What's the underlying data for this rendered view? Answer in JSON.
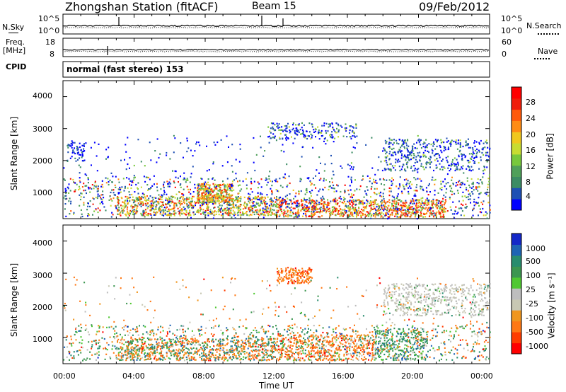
{
  "header": {
    "station": "Zhongshan Station (fitACF)",
    "beam": "Beam 15",
    "date": "09/Feb/2012"
  },
  "aux": {
    "nsky_label": "N.Sky",
    "nsky_ticks": [
      "10^5",
      "10^0"
    ],
    "nsearch_label": "N.Search",
    "nsearch_ticks": [
      "10^5",
      "10^0"
    ],
    "freq_label_1": "Freq.",
    "freq_label_2": "[MHz]",
    "freq_ticks": [
      "18",
      "8"
    ],
    "nave_label": "Nave",
    "nave_ticks": [
      "60",
      "0"
    ],
    "cpid_label": "CPID",
    "cpid_value": "normal (fast stereo) 153"
  },
  "colors": {
    "power": [
      "#0000ff",
      "#1e50b4",
      "#3c8c64",
      "#50a05a",
      "#78c83c",
      "#c8dc32",
      "#f0c81e",
      "#ff8c14",
      "#ff5a0a",
      "#f01e0a",
      "#ff0000"
    ],
    "velocity": [
      "#ff0000",
      "#ff3c00",
      "#ff7814",
      "#f0961e",
      "#c8c8b4",
      "#bebebe",
      "#50c832",
      "#3c9650",
      "#288c6e",
      "#1e64b4",
      "#1428c8"
    ]
  },
  "chart_data": [
    {
      "type": "heatmap",
      "name": "power",
      "ylabel": "Slant Range [km]",
      "yticks": [
        "4000",
        "3000",
        "2000",
        "1000"
      ],
      "ylim": [
        180,
        4500
      ],
      "xlabel": "Time UT",
      "xticks": [
        "00:00",
        "04:00",
        "08:00",
        "12:00",
        "16:00",
        "20:00",
        "00:00"
      ],
      "xlim": [
        0,
        24
      ],
      "colorbar_label": "Power [dB]",
      "colorbar_ticks": [
        "28",
        "24",
        "20",
        "16",
        "12",
        "8",
        "4"
      ],
      "colorbar_range": [
        0,
        30
      ]
    },
    {
      "type": "heatmap",
      "name": "velocity",
      "ylabel": "Slant Range [km]",
      "yticks": [
        "4000",
        "3000",
        "2000",
        "1000"
      ],
      "ylim": [
        180,
        4500
      ],
      "xlabel": "Time UT",
      "xticks": [
        "00:00",
        "04:00",
        "08:00",
        "12:00",
        "16:00",
        "20:00",
        "00:00"
      ],
      "xlim": [
        0,
        24
      ],
      "colorbar_label": "Velocity [m s⁻¹]",
      "colorbar_ticks": [
        "1000",
        "500",
        "100",
        "25",
        "-25",
        "-100",
        "-500",
        "-1000"
      ]
    }
  ]
}
